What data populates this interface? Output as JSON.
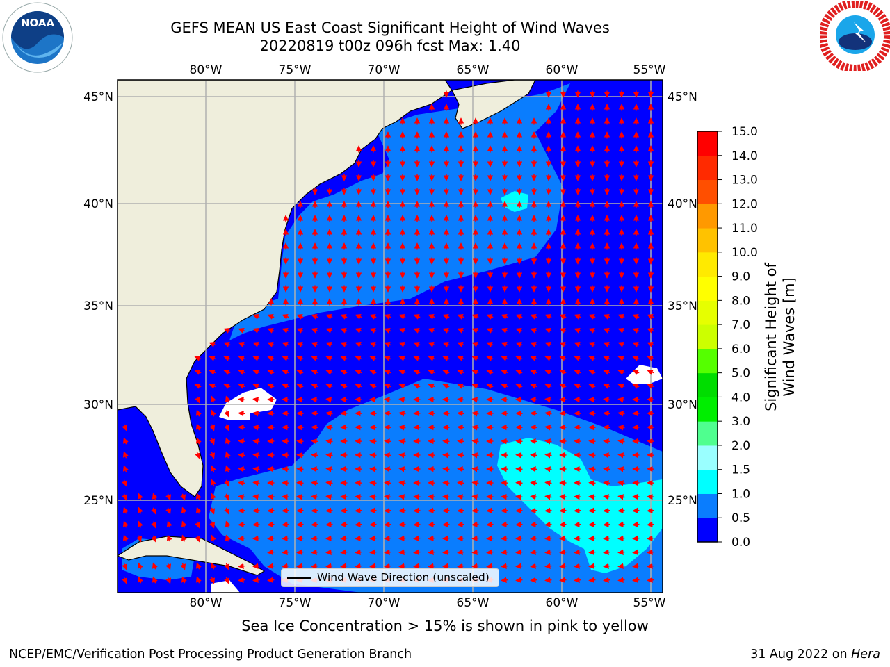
{
  "title_line1": "GEFS MEAN US East Coast Significant Height of Wind Waves",
  "title_line2": "20220819 t00z 096h fcst   Max: 1.40",
  "logos": {
    "left": "NOAA",
    "right": "NATIONAL WEATHER SERVICE"
  },
  "map": {
    "lon_ticks": [
      "80°W",
      "75°W",
      "70°W",
      "65°W",
      "60°W",
      "55°W"
    ],
    "lat_ticks": [
      "45°N",
      "40°N",
      "35°N",
      "30°N",
      "25°N"
    ],
    "legend_label": "Wind Wave Direction (unscaled)",
    "land_color": "#efeedc",
    "ocean_low_color": "#0000ff"
  },
  "colorbar": {
    "label": "Significant Height of Wind Waves [m]",
    "ticks": [
      "15.0",
      "14.0",
      "13.0",
      "12.0",
      "11.0",
      "10.0",
      "9.0",
      "8.0",
      "7.0",
      "6.0",
      "5.0",
      "4.0",
      "3.0",
      "2.0",
      "1.5",
      "1.0",
      "0.5",
      "0.0"
    ],
    "colors": [
      "#0000ff",
      "#0a7dfe",
      "#00ffff",
      "#4cffff",
      "#9affff",
      "#4fff8f",
      "#00ee00",
      "#00dd00",
      "#55ff00",
      "#a2f500",
      "#ccff00",
      "#e6ff00",
      "#ffff00",
      "#ffea00",
      "#ffc200",
      "#ff9900",
      "#ff7700",
      "#ff4f00",
      "#ff2a00",
      "#ff0000"
    ]
  },
  "ice_note": "Sea Ice Concentration > 15% is shown in pink to yellow",
  "footer_left": "NCEP/EMC/Verification Post Processing Product Generation Branch",
  "footer_right_date": "31 Aug 2022 on",
  "footer_right_machine": "Hera"
}
